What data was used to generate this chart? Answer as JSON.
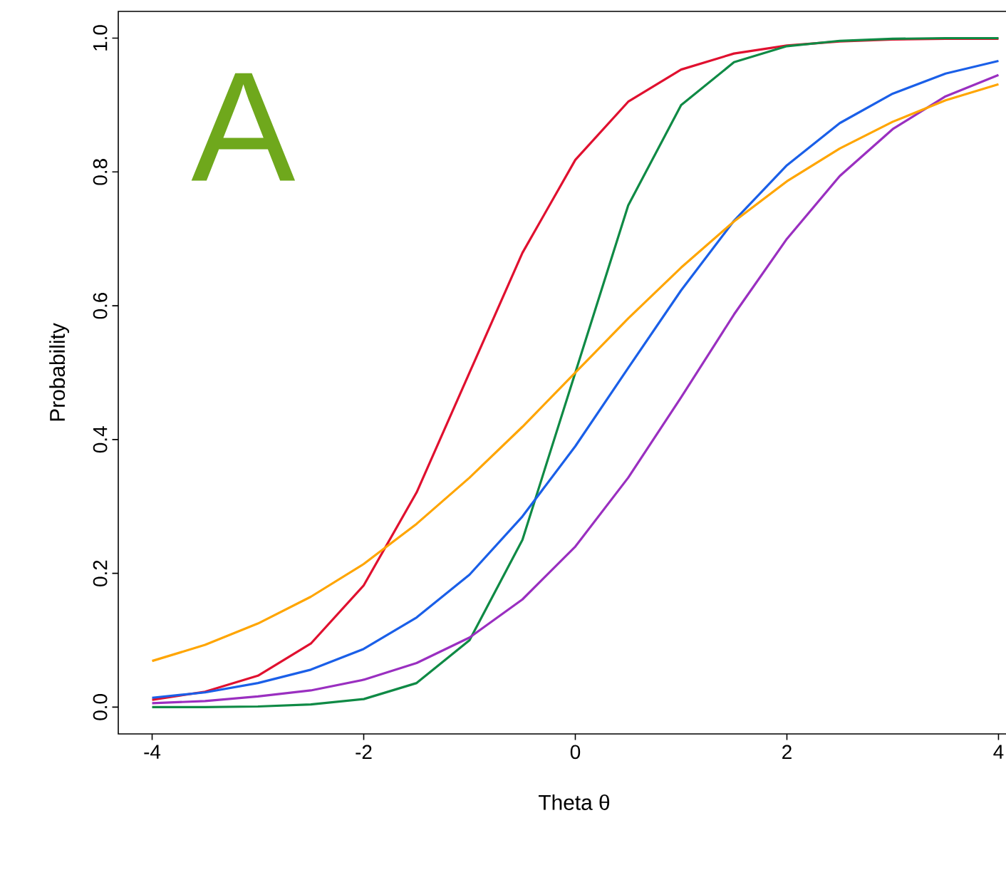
{
  "chart_data": {
    "type": "line",
    "xlabel": "Theta θ",
    "ylabel": "Probability",
    "annotations": [
      "A"
    ],
    "x": [
      -4,
      -3.5,
      -3,
      -2.5,
      -2,
      -1.5,
      -1,
      -0.5,
      0,
      0.5,
      1,
      1.5,
      2,
      2.5,
      3,
      3.5,
      4
    ],
    "series": [
      {
        "color": "#e0102f",
        "values": [
          0.011,
          0.023,
          0.047,
          0.095,
          0.182,
          0.321,
          0.5,
          0.679,
          0.818,
          0.905,
          0.953,
          0.977,
          0.989,
          0.995,
          0.998,
          0.999,
          0.999
        ]
      },
      {
        "color": "#0f8a45",
        "values": [
          0.0,
          0.0,
          0.001,
          0.004,
          0.012,
          0.036,
          0.1,
          0.25,
          0.5,
          0.75,
          0.9,
          0.964,
          0.988,
          0.996,
          0.999,
          1.0,
          1.0
        ]
      },
      {
        "color": "#1a5fe8",
        "values": [
          0.014,
          0.022,
          0.036,
          0.056,
          0.087,
          0.134,
          0.198,
          0.285,
          0.39,
          0.507,
          0.623,
          0.727,
          0.81,
          0.873,
          0.917,
          0.947,
          0.966
        ]
      },
      {
        "color": "#9a2fc0",
        "values": [
          0.006,
          0.009,
          0.016,
          0.025,
          0.041,
          0.066,
          0.104,
          0.161,
          0.24,
          0.343,
          0.463,
          0.587,
          0.7,
          0.794,
          0.864,
          0.913,
          0.945
        ]
      },
      {
        "color": "#ffa500",
        "values": [
          0.069,
          0.093,
          0.125,
          0.165,
          0.214,
          0.274,
          0.343,
          0.419,
          0.5,
          0.581,
          0.657,
          0.726,
          0.786,
          0.835,
          0.875,
          0.907,
          0.931
        ]
      }
    ],
    "xlim": [
      -4.32,
      4.3
    ],
    "ylim": [
      -0.04,
      1.04
    ],
    "xticks": [
      -4,
      -2,
      0,
      2,
      4
    ],
    "yticks": [
      {
        "value": 0,
        "label": "0.0"
      },
      {
        "value": 0.2,
        "label": "0.2"
      },
      {
        "value": 0.4,
        "label": "0.4"
      },
      {
        "value": 0.6,
        "label": "0.6"
      },
      {
        "value": 0.8,
        "label": "0.8"
      },
      {
        "value": 1,
        "label": "1.0"
      }
    ],
    "grid": false,
    "marker": "none",
    "line_style": "solid"
  }
}
